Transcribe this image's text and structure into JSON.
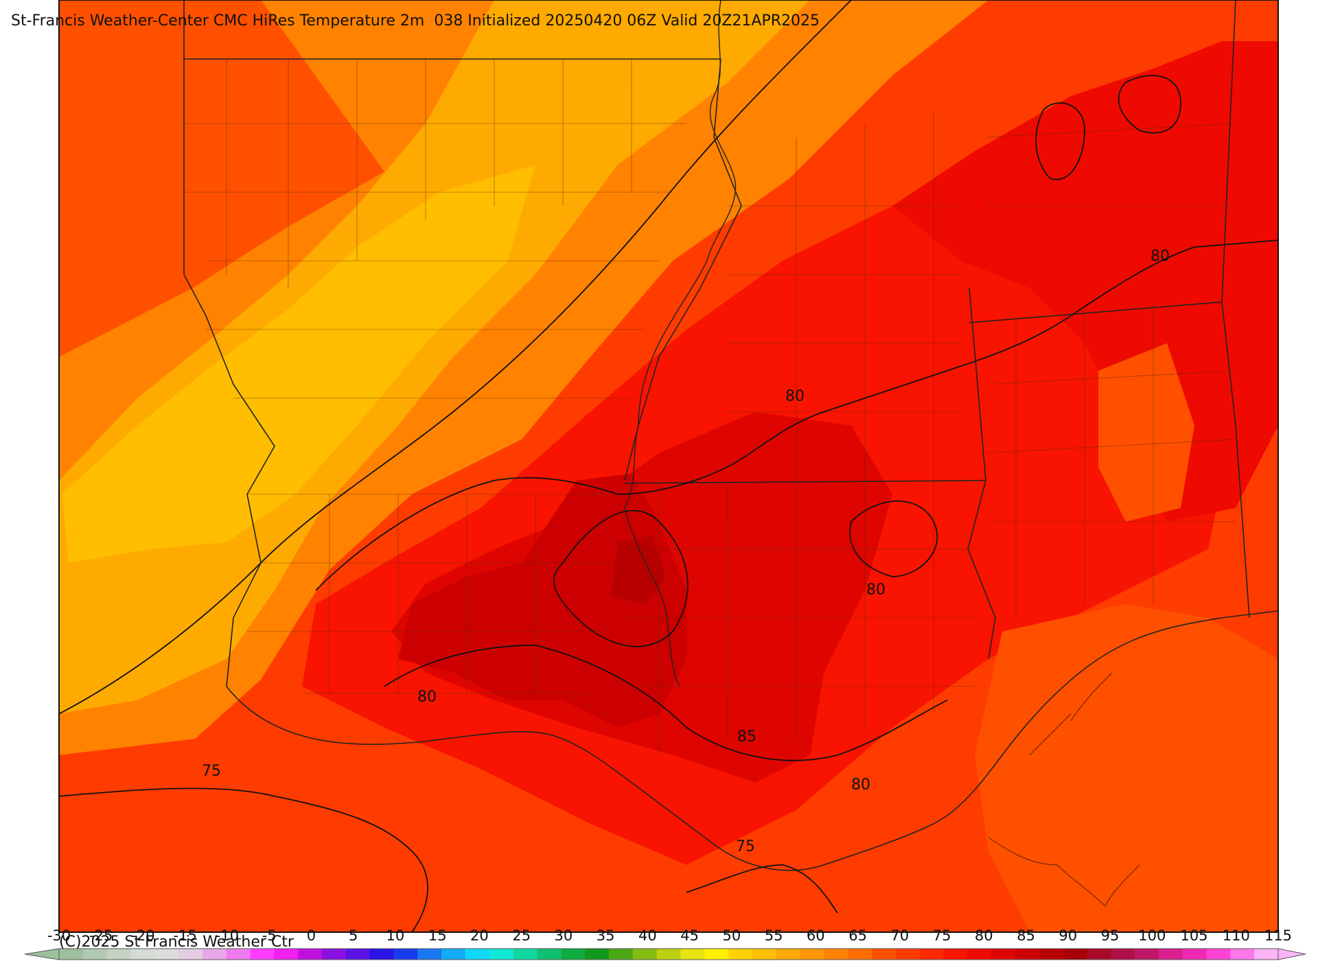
{
  "title": "St-Francis Weather-Center CMC HiRes Temperature 2m  038 Initialized 20250420 06Z Valid 20Z21APR2025",
  "copyright": "(C)2025 St Francis Weather Ctr",
  "contour_labels": [
    "80",
    "80",
    "80",
    "80",
    "80",
    "85",
    "75",
    "75"
  ],
  "colorbar": {
    "ticks": [
      "-30",
      "-25",
      "-20",
      "-15",
      "-10",
      "-5",
      "0",
      "5",
      "10",
      "15",
      "20",
      "25",
      "30",
      "35",
      "40",
      "45",
      "50",
      "55",
      "60",
      "65",
      "70",
      "75",
      "80",
      "85",
      "90",
      "95",
      "100",
      "105",
      "110",
      "115"
    ],
    "colors": [
      "#9dbf9d",
      "#b2c9b2",
      "#c4d3c4",
      "#d3dbd3",
      "#dcdcdc",
      "#e2cde2",
      "#e8a8e8",
      "#f07af0",
      "#ff3cff",
      "#f020f0",
      "#c010e0",
      "#8a10e0",
      "#5a14e6",
      "#2a14e8",
      "#1a3cf0",
      "#1a78f5",
      "#12acf8",
      "#10d8f8",
      "#10e8d8",
      "#10d8a0",
      "#10c070",
      "#10ac40",
      "#12981c",
      "#4aa812",
      "#86bc12",
      "#bcd010",
      "#e8e410",
      "#fff000",
      "#ffd200",
      "#ffbe00",
      "#ffaa00",
      "#ff9600",
      "#ff8200",
      "#ff6e00",
      "#ff5000",
      "#ff3c00",
      "#ff2800",
      "#f81400",
      "#ee0a00",
      "#de0500",
      "#cc0000",
      "#b80000",
      "#a80008",
      "#a80a28",
      "#b01048",
      "#c01868",
      "#d8208c",
      "#ee2ab4",
      "#fe44d6",
      "#fe78ea",
      "#feb4f6"
    ]
  }
}
